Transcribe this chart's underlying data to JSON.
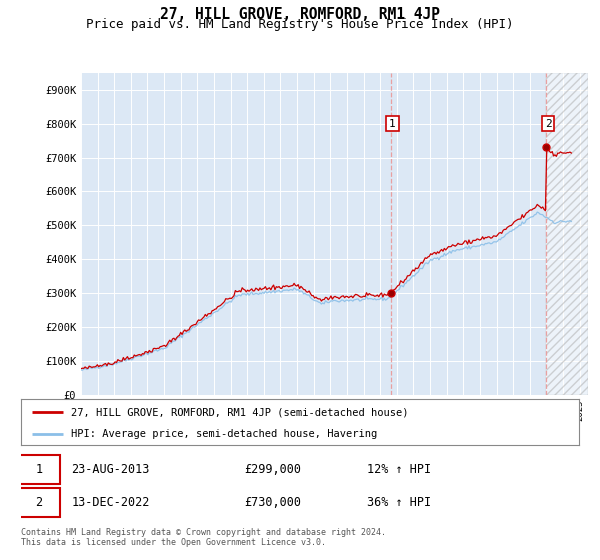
{
  "title": "27, HILL GROVE, ROMFORD, RM1 4JP",
  "subtitle": "Price paid vs. HM Land Registry's House Price Index (HPI)",
  "ylabel_ticks": [
    "£0",
    "£100K",
    "£200K",
    "£300K",
    "£400K",
    "£500K",
    "£600K",
    "£700K",
    "£800K",
    "£900K"
  ],
  "ytick_values": [
    0,
    100000,
    200000,
    300000,
    400000,
    500000,
    600000,
    700000,
    800000,
    900000
  ],
  "ylim": [
    0,
    950000
  ],
  "xlim_start": 1995.0,
  "xlim_end": 2025.5,
  "hpi_color": "#8bbfe8",
  "price_color": "#cc0000",
  "bg_color": "#dce8f5",
  "sale1_x": 2013.64,
  "sale1_y": 299000,
  "sale2_x": 2022.95,
  "sale2_y": 730000,
  "legend_line1": "27, HILL GROVE, ROMFORD, RM1 4JP (semi-detached house)",
  "legend_line2": "HPI: Average price, semi-detached house, Havering",
  "table_row1_num": "1",
  "table_row1_date": "23-AUG-2013",
  "table_row1_price": "£299,000",
  "table_row1_hpi": "12% ↑ HPI",
  "table_row2_num": "2",
  "table_row2_date": "13-DEC-2022",
  "table_row2_price": "£730,000",
  "table_row2_hpi": "36% ↑ HPI",
  "footnote": "Contains HM Land Registry data © Crown copyright and database right 2024.\nThis data is licensed under the Open Government Licence v3.0.",
  "title_fontsize": 10.5,
  "subtitle_fontsize": 9,
  "tick_fontsize": 7.5,
  "dashed_color": "#e8a0a0"
}
